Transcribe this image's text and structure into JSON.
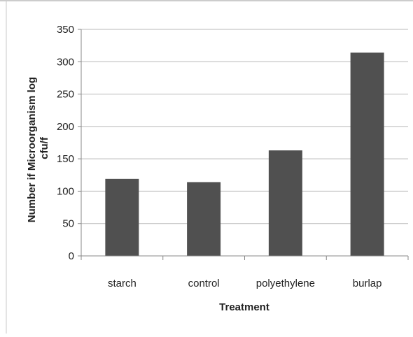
{
  "chart_data": {
    "type": "bar",
    "title": "",
    "xlabel": "Treatment",
    "ylabel_lines": [
      "Number if Microorganism log",
      "cfu/f"
    ],
    "categories": [
      "starch",
      "control",
      "polyethylene",
      "burlap"
    ],
    "values": [
      119,
      114,
      163,
      314
    ],
    "ylim": [
      0,
      350
    ],
    "yticks": [
      0,
      50,
      100,
      150,
      200,
      250,
      300,
      350
    ],
    "grid": true,
    "legend": "none",
    "bar_color": "#505050",
    "grid_color": "#b8b8b8"
  }
}
